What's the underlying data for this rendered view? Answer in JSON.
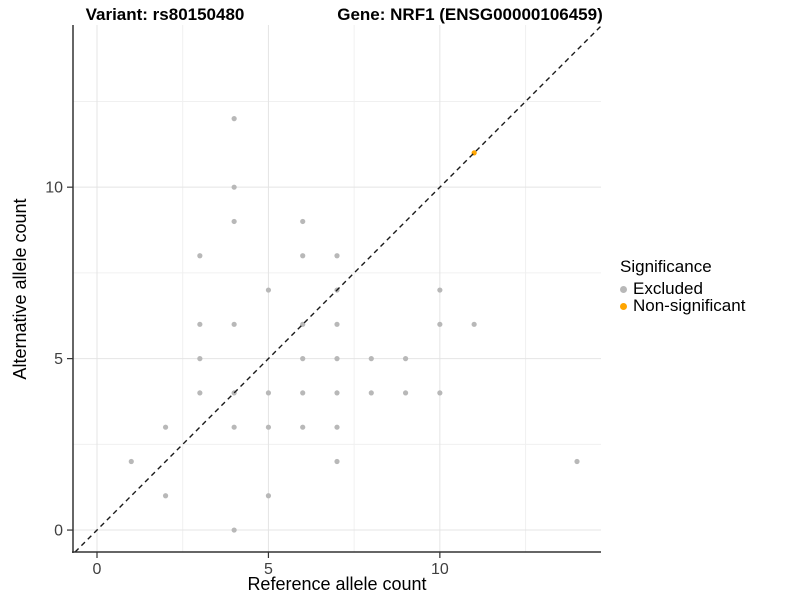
{
  "titles": {
    "left": "Variant: rs80150480",
    "right": "Gene: NRF1 (ENSG00000106459)"
  },
  "chart_data": {
    "type": "scatter",
    "xlabel": "Reference allele count",
    "ylabel": "Alternative allele count",
    "x_ticks": [
      0,
      5,
      10
    ],
    "y_ticks": [
      0,
      5,
      10
    ],
    "x_range": [
      -0.7,
      14.7
    ],
    "y_range": [
      -0.64,
      14.73
    ],
    "grid": {
      "major": [
        0,
        5,
        10
      ],
      "minor": [
        2.5,
        7.5,
        12.5
      ],
      "major_color": "#e4e4e4",
      "minor_color": "#f0f0f0"
    },
    "identity_line": {
      "equation": "y = x",
      "style": "dashed",
      "color": "#1a1a1a"
    },
    "axis_color": "#333333",
    "tick_label_color": "#404040",
    "legend": {
      "title": "Significance",
      "position": "right",
      "items": [
        {
          "label": "Excluded",
          "color": "#b8b8b8"
        },
        {
          "label": "Non-significant",
          "color": "#FFA500"
        }
      ]
    },
    "series": [
      {
        "name": "Excluded",
        "color": "#b8b8b8",
        "points": [
          [
            1,
            2
          ],
          [
            2,
            1
          ],
          [
            2,
            3
          ],
          [
            3,
            4
          ],
          [
            3,
            5
          ],
          [
            3,
            6
          ],
          [
            3,
            8
          ],
          [
            4,
            0
          ],
          [
            4,
            3
          ],
          [
            4,
            4
          ],
          [
            4,
            6
          ],
          [
            4,
            9
          ],
          [
            4,
            10
          ],
          [
            4,
            12
          ],
          [
            5,
            1
          ],
          [
            5,
            3
          ],
          [
            5,
            4
          ],
          [
            5,
            7
          ],
          [
            6,
            3
          ],
          [
            6,
            4
          ],
          [
            6,
            5
          ],
          [
            6,
            6
          ],
          [
            6,
            8
          ],
          [
            6,
            9
          ],
          [
            7,
            2
          ],
          [
            7,
            3
          ],
          [
            7,
            4
          ],
          [
            7,
            5
          ],
          [
            7,
            6
          ],
          [
            7,
            7
          ],
          [
            7,
            8
          ],
          [
            8,
            4
          ],
          [
            8,
            5
          ],
          [
            9,
            4
          ],
          [
            9,
            5
          ],
          [
            10,
            4
          ],
          [
            10,
            6
          ],
          [
            10,
            7
          ],
          [
            11,
            6
          ],
          [
            14,
            2
          ]
        ]
      },
      {
        "name": "Non-significant",
        "color": "#FFA500",
        "points": [
          [
            11,
            11
          ]
        ]
      }
    ]
  }
}
